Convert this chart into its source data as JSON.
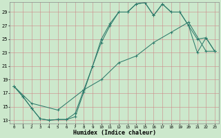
{
  "xlabel": "Humidex (Indice chaleur)",
  "bg_color": "#cce8cc",
  "grid_color_major": "#aaaacc",
  "grid_color_minor": "#ccbbbb",
  "line_color": "#2d7a6a",
  "xlim": [
    -0.5,
    23.5
  ],
  "ylim": [
    12.5,
    30.5
  ],
  "yticks": [
    13,
    15,
    17,
    19,
    21,
    23,
    25,
    27,
    29
  ],
  "xticks": [
    0,
    1,
    2,
    3,
    4,
    5,
    6,
    7,
    8,
    9,
    10,
    11,
    12,
    13,
    14,
    15,
    16,
    17,
    18,
    19,
    20,
    21,
    22,
    23
  ],
  "line1_x": [
    0,
    1,
    2,
    3,
    4,
    5,
    6,
    7,
    8,
    9,
    10,
    11,
    12,
    13,
    14,
    15,
    16,
    17,
    18,
    19,
    20,
    21,
    22,
    23
  ],
  "line1_y": [
    18.0,
    16.5,
    14.8,
    13.2,
    13.0,
    13.1,
    13.1,
    13.5,
    17.2,
    21.0,
    24.5,
    27.0,
    29.0,
    29.0,
    30.2,
    30.4,
    28.5,
    30.2,
    29.0,
    29.0,
    27.0,
    23.0,
    25.2,
    23.2
  ],
  "line2_x": [
    0,
    1,
    2,
    3,
    4,
    5,
    6,
    7,
    8,
    9,
    10,
    11,
    12,
    13,
    14,
    15,
    16,
    17,
    18,
    19,
    20,
    21,
    22,
    23
  ],
  "line2_y": [
    18.0,
    16.5,
    14.8,
    13.2,
    13.0,
    13.1,
    13.1,
    14.0,
    17.5,
    21.0,
    25.0,
    27.3,
    29.0,
    29.0,
    30.2,
    30.4,
    28.5,
    30.2,
    29.0,
    29.0,
    27.0,
    25.0,
    25.2,
    23.2
  ],
  "line3_x": [
    0,
    2,
    5,
    8,
    10,
    12,
    14,
    16,
    18,
    20,
    22,
    23
  ],
  "line3_y": [
    18.0,
    15.5,
    14.5,
    17.5,
    19.0,
    21.5,
    22.5,
    24.5,
    26.0,
    27.5,
    23.2,
    23.2
  ]
}
